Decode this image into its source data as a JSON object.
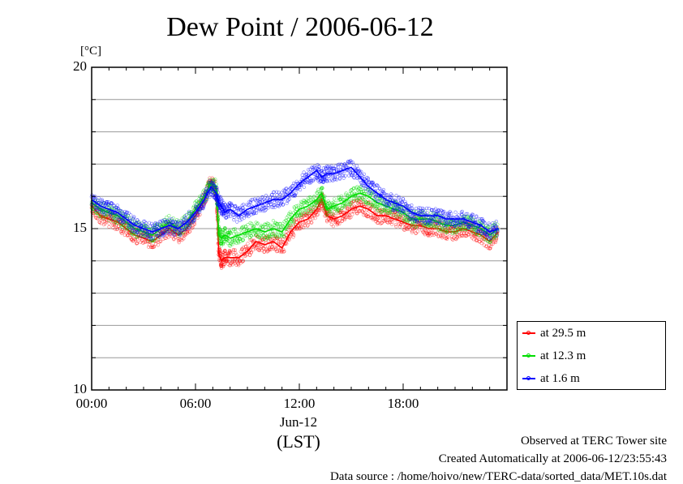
{
  "title": "Dew Point / 2006-06-12",
  "unit_label": "[°C]",
  "xlabel_date": "Jun-12",
  "xlabel_tz": "(LST)",
  "footer": {
    "site": "Observed at TERC Tower site",
    "created": "Created Automatically at 2006-06-12/23:55:43",
    "source": "Data source : /home/hoivo/new/TERC-data/sorted_data/MET.10s.dat"
  },
  "chart_data": {
    "type": "line",
    "title": "Dew Point / 2006-06-12",
    "ylabel": "[°C]",
    "xlabel": "(LST)",
    "xlim": [
      0,
      24
    ],
    "ylim": [
      10,
      20
    ],
    "y_ticks": [
      10,
      15,
      20
    ],
    "y_tick_labels": [
      "10",
      "15",
      "20"
    ],
    "y_minor_gridlines": [
      11,
      12,
      13,
      14,
      16,
      17,
      18,
      19
    ],
    "x_ticks": [
      0,
      6,
      12,
      18
    ],
    "x_tick_labels": [
      "00:00",
      "06:00",
      "12:00",
      "18:00"
    ],
    "grid": true,
    "legend_position": "bottom-right outside",
    "series": [
      {
        "name": "at 29.5 m",
        "color": "#ff0000",
        "x": [
          0,
          0.5,
          1,
          1.5,
          2,
          2.5,
          3,
          3.5,
          4,
          4.5,
          5,
          5.5,
          6,
          6.5,
          6.9,
          7.2,
          7.35,
          7.5,
          7.7,
          8,
          8.5,
          9,
          9.5,
          10,
          10.5,
          11,
          11.5,
          12,
          12.5,
          13,
          13.3,
          13.6,
          14,
          14.5,
          15,
          15.5,
          16,
          16.5,
          17,
          17.5,
          18,
          18.5,
          19,
          19.5,
          20,
          20.5,
          21,
          21.5,
          22,
          22.5,
          23,
          23.5
        ],
        "y": [
          15.7,
          15.4,
          15.3,
          15.2,
          15.0,
          14.8,
          14.7,
          14.6,
          14.8,
          15.0,
          14.8,
          15.0,
          15.4,
          15.9,
          16.5,
          16.2,
          14.2,
          14.0,
          14.1,
          14.1,
          14.1,
          14.3,
          14.6,
          14.5,
          14.6,
          14.4,
          14.9,
          15.2,
          15.3,
          15.6,
          15.9,
          15.4,
          15.3,
          15.4,
          15.6,
          15.7,
          15.6,
          15.4,
          15.4,
          15.3,
          15.2,
          15.1,
          15.1,
          15.0,
          15.0,
          14.9,
          14.9,
          15.0,
          14.9,
          14.8,
          14.6,
          14.9
        ]
      },
      {
        "name": "at 12.3 m",
        "color": "#00dd00",
        "x": [
          0,
          0.5,
          1,
          1.5,
          2,
          2.5,
          3,
          3.5,
          4,
          4.5,
          5,
          5.5,
          6,
          6.5,
          6.9,
          7.2,
          7.35,
          7.5,
          7.7,
          8,
          8.5,
          9,
          9.5,
          10,
          10.5,
          11,
          11.5,
          12,
          12.5,
          13,
          13.3,
          13.6,
          14,
          14.5,
          15,
          15.5,
          16,
          16.5,
          17,
          17.5,
          18,
          18.5,
          19,
          19.5,
          20,
          20.5,
          21,
          21.5,
          22,
          22.5,
          23,
          23.5
        ],
        "y": [
          15.8,
          15.6,
          15.5,
          15.4,
          15.2,
          15.0,
          14.9,
          14.8,
          15.0,
          15.2,
          15.0,
          15.2,
          15.6,
          16.0,
          16.4,
          16.3,
          14.8,
          14.7,
          14.8,
          14.7,
          14.8,
          14.9,
          15.0,
          14.9,
          15.0,
          14.9,
          15.3,
          15.6,
          15.7,
          15.9,
          16.1,
          15.6,
          15.7,
          15.8,
          16.0,
          16.1,
          16.0,
          15.8,
          15.7,
          15.6,
          15.5,
          15.3,
          15.3,
          15.3,
          15.2,
          15.1,
          15.1,
          15.2,
          15.1,
          15.0,
          14.8,
          15.0
        ]
      },
      {
        "name": "at 1.6 m",
        "color": "#0000ff",
        "x": [
          0,
          0.5,
          1,
          1.5,
          2,
          2.5,
          3,
          3.5,
          4,
          4.5,
          5,
          5.5,
          6,
          6.5,
          6.9,
          7.2,
          7.35,
          7.5,
          7.7,
          8,
          8.5,
          9,
          9.5,
          10,
          10.5,
          11,
          11.5,
          12,
          12.5,
          13,
          13.3,
          13.6,
          14,
          14.5,
          15,
          15.5,
          16,
          16.5,
          17,
          17.5,
          18,
          18.5,
          19,
          19.5,
          20,
          20.5,
          21,
          21.5,
          22,
          22.5,
          23,
          23.5
        ],
        "y": [
          15.9,
          15.7,
          15.6,
          15.5,
          15.3,
          15.1,
          15.0,
          14.9,
          15.0,
          15.1,
          15.0,
          15.2,
          15.5,
          15.9,
          16.3,
          16.1,
          15.8,
          15.7,
          15.5,
          15.6,
          15.4,
          15.6,
          15.7,
          15.8,
          15.9,
          15.9,
          16.1,
          16.4,
          16.6,
          16.8,
          16.6,
          16.7,
          16.7,
          16.8,
          16.9,
          16.6,
          16.3,
          16.1,
          15.9,
          15.8,
          15.7,
          15.5,
          15.4,
          15.4,
          15.4,
          15.3,
          15.3,
          15.3,
          15.2,
          15.1,
          14.9,
          15.0
        ]
      }
    ]
  }
}
